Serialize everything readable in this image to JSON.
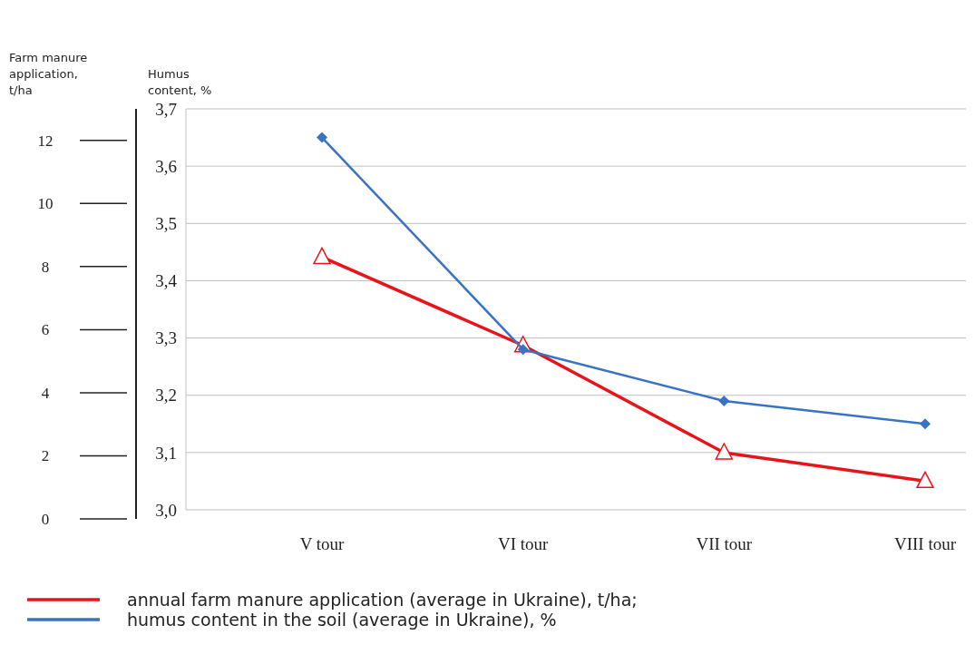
{
  "chart_data": {
    "type": "line",
    "ylabel": "Humus content, %",
    "y2label": "Farm manure application, t/ha",
    "categories": [
      "V tour",
      "VI tour",
      "VII tour",
      "VIII tour"
    ],
    "series": [
      {
        "name": "annual farm manure application (average in Ukraine), t/ha;",
        "color": "#e8141c",
        "values": [
          8.3,
          5.5,
          2.1,
          1.2
        ],
        "axis": "y2",
        "marker": "triangle"
      },
      {
        "name": "humus content in the soil (average in Ukraine), %",
        "color": "#3a72c4",
        "values": [
          3.65,
          3.28,
          3.19,
          3.15
        ],
        "marker": "diamond"
      }
    ],
    "ylim": [
      3.0,
      3.7
    ],
    "yticks": [
      {
        "value": 3.0,
        "label": "3,0"
      },
      {
        "value": 3.1,
        "label": "3,1"
      },
      {
        "value": 3.2,
        "label": "3,2"
      },
      {
        "value": 3.3,
        "label": "3,3"
      },
      {
        "value": 3.4,
        "label": "3,4"
      },
      {
        "value": 3.5,
        "label": "3,5"
      },
      {
        "value": 3.6,
        "label": "3,6"
      },
      {
        "value": 3.7,
        "label": "3,7"
      }
    ],
    "y2lim": [
      0,
      13
    ],
    "y2ticks": [
      0,
      2,
      4,
      6,
      8,
      10,
      12
    ],
    "grid": "y",
    "legend": "bottom",
    "line_style": "solid"
  }
}
